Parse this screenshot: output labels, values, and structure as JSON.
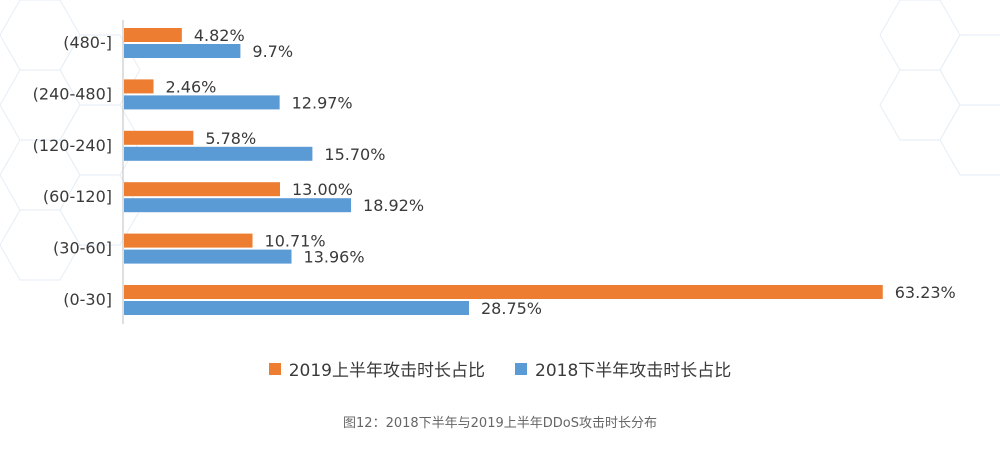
{
  "chart_data": {
    "type": "bar",
    "orientation": "horizontal",
    "categories": [
      "(480-]",
      "(240-480]",
      "(120-240]",
      "(60-120]",
      "(30-60]",
      "(0-30]"
    ],
    "series": [
      {
        "name": "2019上半年攻击时长占比",
        "color": "#ED7D31",
        "values": [
          4.82,
          2.46,
          5.78,
          13.0,
          10.71,
          63.23
        ],
        "labels": [
          "4.82%",
          "2.46%",
          "5.78%",
          "13.00%",
          "10.71%",
          "63.23%"
        ]
      },
      {
        "name": "2018下半年攻击时长占比",
        "color": "#5B9BD5",
        "values": [
          9.7,
          12.97,
          15.7,
          18.92,
          13.96,
          28.75
        ],
        "labels": [
          "9.7%",
          "12.97%",
          "15.70%",
          "18.92%",
          "13.96%",
          "28.75%"
        ]
      }
    ],
    "xlim": [
      0,
      70
    ],
    "grid": false,
    "legend_position": "bottom"
  },
  "caption": "图12：2018下半年与2019上半年DDoS攻击时长分布"
}
